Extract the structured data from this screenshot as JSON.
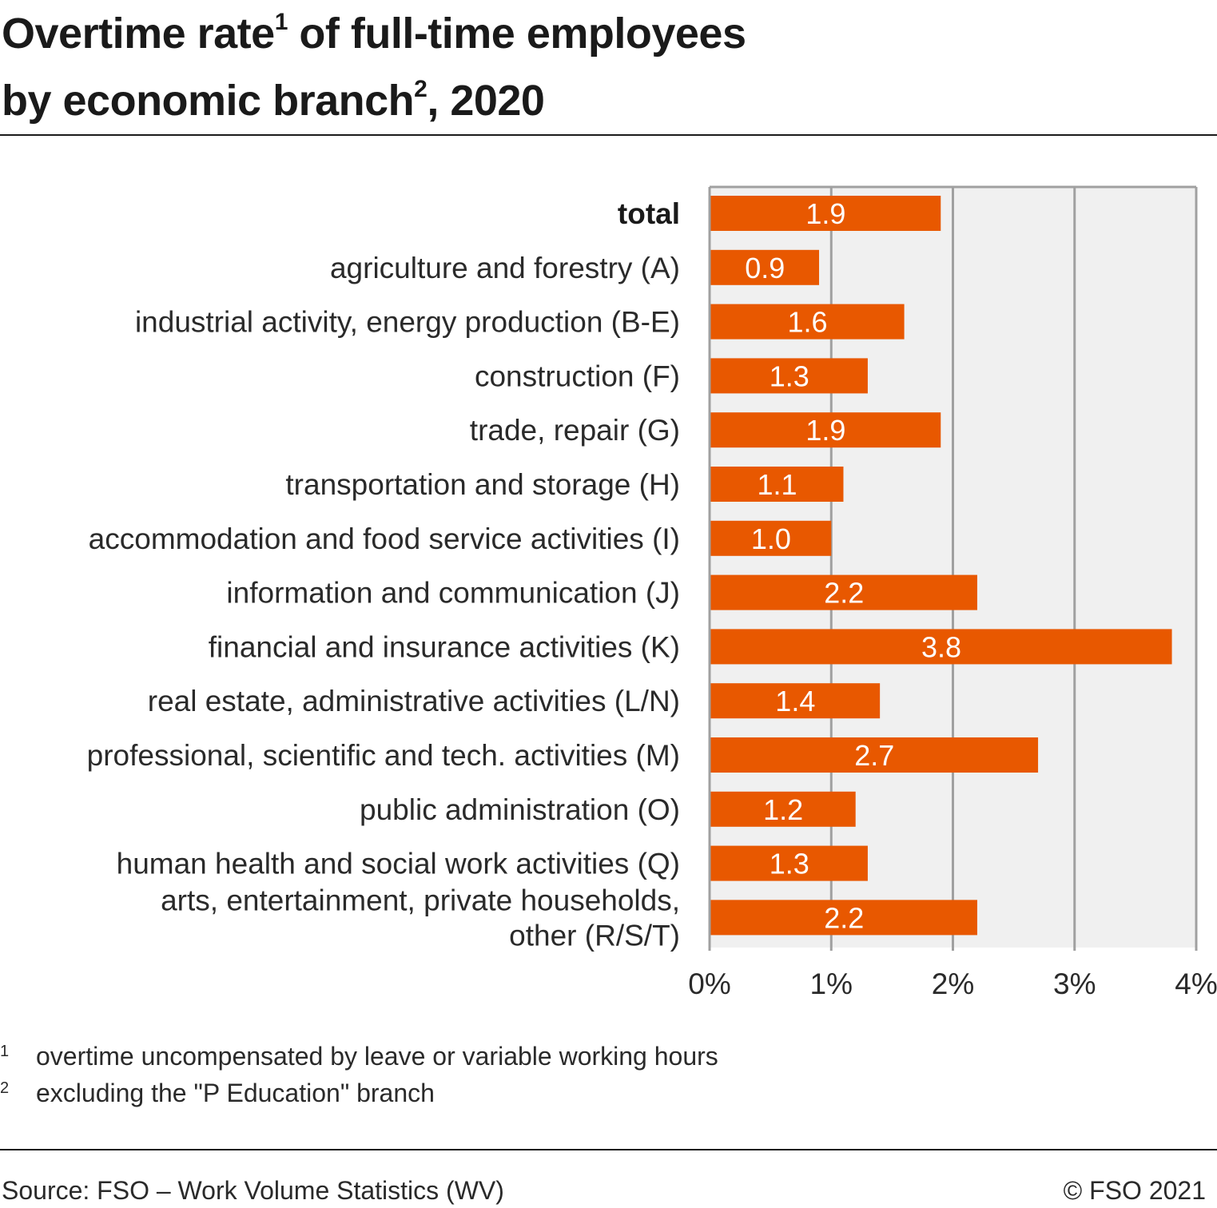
{
  "header": {
    "title_part1": "Overtime rate",
    "title_sup1": "1",
    "title_part2": " of full-time employees",
    "title_part3": "by economic branch",
    "title_sup2": "2",
    "title_part4": ", 2020"
  },
  "chart_data": {
    "type": "bar",
    "orientation": "horizontal",
    "categories": [
      "total",
      "agriculture and forestry (A)",
      "industrial activity, energy production (B-E)",
      "construction (F)",
      "trade, repair (G)",
      "transportation and storage (H)",
      "accommodation and food service activities (I)",
      "information and communication (J)",
      "financial and insurance activities (K)",
      "real estate, administrative activities (L/N)",
      "professional, scientific and tech. activities (M)",
      "public administration (O)",
      "human health and social work activities (Q)",
      "arts, entertainment, private households, other (R/S/T)"
    ],
    "category_lines": [
      [
        "total"
      ],
      [
        "agriculture and forestry (A)"
      ],
      [
        "industrial activity, energy production (B-E)"
      ],
      [
        "construction (F)"
      ],
      [
        "trade, repair (G)"
      ],
      [
        "transportation and storage (H)"
      ],
      [
        "accommodation and food service activities (I)"
      ],
      [
        "information and communication (J)"
      ],
      [
        "financial and insurance activities (K)"
      ],
      [
        "real estate, administrative activities (L/N)"
      ],
      [
        "professional, scientific and tech. activities (M)"
      ],
      [
        "public administration (O)"
      ],
      [
        "human health and social work activities (Q)"
      ],
      [
        "arts, entertainment, private households,",
        "other (R/S/T)"
      ]
    ],
    "values": [
      1.9,
      0.9,
      1.6,
      1.3,
      1.9,
      1.1,
      1.0,
      2.2,
      3.8,
      1.4,
      2.7,
      1.2,
      1.3,
      2.2
    ],
    "value_labels": [
      "1.9",
      "0.9",
      "1.6",
      "1.3",
      "1.9",
      "1.1",
      "1.0",
      "2.2",
      "3.8",
      "1.4",
      "2.7",
      "1.2",
      "1.3",
      "2.2"
    ],
    "xlim": [
      0,
      4
    ],
    "x_ticks": [
      0,
      1,
      2,
      3,
      4
    ],
    "x_tick_labels": [
      "0%",
      "1%",
      "2%",
      "3%",
      "4%"
    ],
    "grid": true,
    "bold_categories": [
      "total"
    ],
    "bar_color": "#e85800",
    "plot_background": "#f0f0f0",
    "grid_color": "#a0a0a0"
  },
  "footnotes": [
    {
      "mark": "1",
      "text": "overtime uncompensated by leave or variable working hours"
    },
    {
      "mark": "2",
      "text": "excluding the \"P Education\" branch"
    }
  ],
  "footer": {
    "source": "Source: FSO – Work Volume Statistics (WV)",
    "copyright": "© FSO 2021"
  }
}
